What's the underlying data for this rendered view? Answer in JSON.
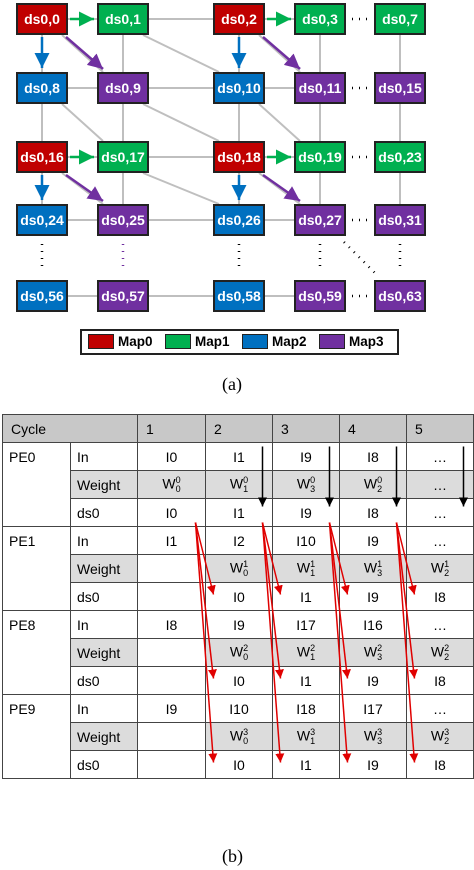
{
  "colors": {
    "Map0": "#c00000",
    "Map1": "#00b050",
    "Map2": "#0070c0",
    "Map3": "#7030a0",
    "grid_line": "#bfbfbf",
    "arrow_red": "#e00000"
  },
  "diagram": {
    "rows": [
      [
        {
          "label": "ds0,0",
          "map": "Map0"
        },
        {
          "label": "ds0,1",
          "map": "Map1"
        },
        {
          "label": "ds0,2",
          "map": "Map0"
        },
        {
          "label": "ds0,3",
          "map": "Map1"
        },
        {
          "label": "ds0,7",
          "map": "Map1"
        }
      ],
      [
        {
          "label": "ds0,8",
          "map": "Map2"
        },
        {
          "label": "ds0,9",
          "map": "Map3"
        },
        {
          "label": "ds0,10",
          "map": "Map2"
        },
        {
          "label": "ds0,11",
          "map": "Map3"
        },
        {
          "label": "ds0,15",
          "map": "Map3"
        }
      ],
      [
        {
          "label": "ds0,16",
          "map": "Map0"
        },
        {
          "label": "ds0,17",
          "map": "Map1"
        },
        {
          "label": "ds0,18",
          "map": "Map0"
        },
        {
          "label": "ds0,19",
          "map": "Map1"
        },
        {
          "label": "ds0,23",
          "map": "Map1"
        }
      ],
      [
        {
          "label": "ds0,24",
          "map": "Map2"
        },
        {
          "label": "ds0,25",
          "map": "Map3"
        },
        {
          "label": "ds0,26",
          "map": "Map2"
        },
        {
          "label": "ds0,27",
          "map": "Map3"
        },
        {
          "label": "ds0,31",
          "map": "Map3"
        }
      ],
      [
        {
          "label": "ds0,56",
          "map": "Map2"
        },
        {
          "label": "ds0,57",
          "map": "Map3"
        },
        {
          "label": "ds0,58",
          "map": "Map2"
        },
        {
          "label": "ds0,59",
          "map": "Map3"
        },
        {
          "label": "ds0,63",
          "map": "Map3"
        }
      ]
    ],
    "legend": [
      {
        "label": "Map0",
        "map": "Map0"
      },
      {
        "label": "Map1",
        "map": "Map1"
      },
      {
        "label": "Map2",
        "map": "Map2"
      },
      {
        "label": "Map3",
        "map": "Map3"
      }
    ],
    "caption": "(a)"
  },
  "table": {
    "header": [
      "Cycle",
      "1",
      "2",
      "3",
      "4",
      "5"
    ],
    "pes": [
      {
        "name": "PE0",
        "in": [
          "I0",
          "I1",
          "I9",
          "I8",
          "…"
        ],
        "weight": [
          {
            "base": "W",
            "sub": "0",
            "sup": "0"
          },
          {
            "base": "W",
            "sub": "1",
            "sup": "0"
          },
          {
            "base": "W",
            "sub": "3",
            "sup": "0"
          },
          {
            "base": "W",
            "sub": "2",
            "sup": "0"
          },
          {
            "text": "…"
          }
        ],
        "ds0": [
          "I0",
          "I1",
          "I9",
          "I8",
          "…"
        ]
      },
      {
        "name": "PE1",
        "in": [
          "I1",
          "I2",
          "I10",
          "I9",
          "…"
        ],
        "weight": [
          null,
          {
            "base": "W",
            "sub": "0",
            "sup": "1"
          },
          {
            "base": "W",
            "sub": "1",
            "sup": "1"
          },
          {
            "base": "W",
            "sub": "3",
            "sup": "1"
          },
          {
            "base": "W",
            "sub": "2",
            "sup": "1"
          }
        ],
        "ds0": [
          null,
          "I0",
          "I1",
          "I9",
          "I8"
        ]
      },
      {
        "name": "PE8",
        "in": [
          "I8",
          "I9",
          "I17",
          "I16",
          "…"
        ],
        "weight": [
          null,
          {
            "base": "W",
            "sub": "0",
            "sup": "2"
          },
          {
            "base": "W",
            "sub": "1",
            "sup": "2"
          },
          {
            "base": "W",
            "sub": "3",
            "sup": "2"
          },
          {
            "base": "W",
            "sub": "2",
            "sup": "2"
          }
        ],
        "ds0": [
          null,
          "I0",
          "I1",
          "I9",
          "I8"
        ]
      },
      {
        "name": "PE9",
        "in": [
          "I9",
          "I10",
          "I18",
          "I17",
          "…"
        ],
        "weight": [
          null,
          {
            "base": "W",
            "sub": "0",
            "sup": "3"
          },
          {
            "base": "W",
            "sub": "1",
            "sup": "3"
          },
          {
            "base": "W",
            "sub": "3",
            "sup": "3"
          },
          {
            "base": "W",
            "sub": "2",
            "sup": "3"
          }
        ],
        "ds0": [
          null,
          "I0",
          "I1",
          "I9",
          "I8"
        ]
      }
    ],
    "row_labels": {
      "in": "In",
      "weight": "Weight",
      "ds0": "ds0"
    },
    "caption": "(b)"
  }
}
